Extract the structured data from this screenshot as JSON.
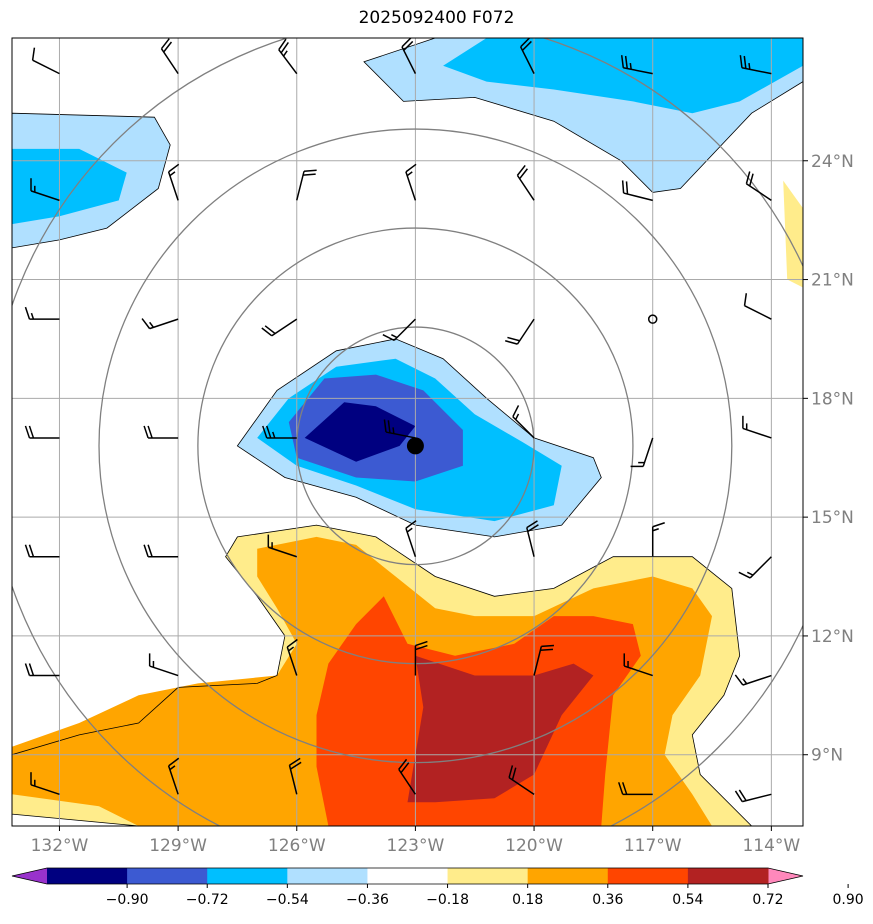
{
  "title": "2025092400 F072",
  "colors": {
    "c1": "#9932cc",
    "c2": "#000080",
    "c3": "#3c5ad2",
    "c4": "#00bfff",
    "c5": "#b0e0ff",
    "c6": "#ffffff",
    "c7": "#ffec8b",
    "c8": "#ffa500",
    "c9": "#ff4500",
    "c10": "#b22222",
    "c11": "#ff88bb",
    "grid": "#aaaaaa",
    "rings": "#808080",
    "tick_label": "#808080"
  },
  "chart_data": {
    "type": "contour-map",
    "xlim": [
      -133.2,
      -113.2
    ],
    "ylim": [
      7.2,
      27.1
    ],
    "x_ticks": [
      -132,
      -129,
      -126,
      -123,
      -120,
      -117,
      -114
    ],
    "x_tick_labels": [
      "132°W",
      "129°W",
      "126°W",
      "123°W",
      "120°W",
      "117°W",
      "114°W"
    ],
    "y_ticks": [
      9,
      12,
      15,
      18,
      21,
      24
    ],
    "y_tick_labels": [
      "9°N",
      "12°N",
      "15°N",
      "18°N",
      "21°N",
      "24°N"
    ],
    "grid": true,
    "storm_center": [
      -123.0,
      16.8
    ],
    "range_ring_radii_deg": [
      3,
      5.5,
      8,
      10.8
    ],
    "colorbar": {
      "levels": [
        -0.9,
        -0.72,
        -0.54,
        -0.36,
        -0.18,
        0.18,
        0.36,
        0.54,
        0.72,
        0.9
      ],
      "tick_labels": [
        "−0.90",
        "−0.72",
        "−0.54",
        "−0.36",
        "−0.18",
        "0.18",
        "0.36",
        "0.54",
        "0.72",
        "0.90"
      ],
      "extend": "both"
    },
    "shaded_regions": [
      {
        "level": 0.18,
        "outline": true,
        "points": [
          [
            -127.5,
            14.5
          ],
          [
            -125.5,
            14.8
          ],
          [
            -124,
            14.5
          ],
          [
            -122.5,
            13.5
          ],
          [
            -121,
            13
          ],
          [
            -119.5,
            13.2
          ],
          [
            -118,
            14
          ],
          [
            -116,
            14
          ],
          [
            -115,
            13.2
          ],
          [
            -114.8,
            11.5
          ],
          [
            -115.2,
            10.5
          ],
          [
            -116,
            9.5
          ],
          [
            -115.8,
            8.5
          ],
          [
            -114.5,
            7.2
          ],
          [
            -130,
            7.2
          ],
          [
            -133.2,
            7.5
          ],
          [
            -133.2,
            9
          ],
          [
            -131.5,
            9.5
          ],
          [
            -130,
            9.8
          ],
          [
            -129,
            10.7
          ],
          [
            -127,
            10.8
          ],
          [
            -126.5,
            11
          ],
          [
            -126.3,
            12
          ],
          [
            -127,
            13
          ],
          [
            -127.8,
            14
          ]
        ]
      },
      {
        "level": 0.18,
        "points": [
          [
            -113.2,
            22.8
          ],
          [
            -113.7,
            23.5
          ],
          [
            -113.6,
            21
          ],
          [
            -113.2,
            20.8
          ]
        ]
      },
      {
        "level": 0.36,
        "points": [
          [
            -127,
            14.2
          ],
          [
            -125.5,
            14.5
          ],
          [
            -124.5,
            14.3
          ],
          [
            -123.5,
            13.5
          ],
          [
            -122.5,
            12.7
          ],
          [
            -121.5,
            12.5
          ],
          [
            -120,
            12.5
          ],
          [
            -118.5,
            13.2
          ],
          [
            -117,
            13.5
          ],
          [
            -116,
            13.2
          ],
          [
            -115.5,
            12.5
          ],
          [
            -115.8,
            11
          ],
          [
            -116.5,
            10
          ],
          [
            -116.7,
            9
          ],
          [
            -116,
            8
          ],
          [
            -115.5,
            7.2
          ],
          [
            -130,
            7.2
          ],
          [
            -131,
            7.7
          ],
          [
            -133.2,
            8
          ],
          [
            -133.2,
            9.2
          ],
          [
            -131.5,
            9.8
          ],
          [
            -130,
            10.5
          ],
          [
            -128.5,
            10.8
          ],
          [
            -126.5,
            11
          ],
          [
            -126,
            11.8
          ],
          [
            -126.5,
            12.7
          ],
          [
            -127,
            13.5
          ]
        ]
      },
      {
        "level": 0.54,
        "points": [
          [
            -123.8,
            13
          ],
          [
            -123.2,
            11.8
          ],
          [
            -122,
            11.5
          ],
          [
            -120.5,
            11.8
          ],
          [
            -119.5,
            12.5
          ],
          [
            -118.5,
            12.5
          ],
          [
            -117.5,
            12.3
          ],
          [
            -117.3,
            11.5
          ],
          [
            -118,
            10.5
          ],
          [
            -118.2,
            8.5
          ],
          [
            -118.3,
            7.2
          ],
          [
            -125.2,
            7.2
          ],
          [
            -125.5,
            8.7
          ],
          [
            -125.5,
            10
          ],
          [
            -125.2,
            11.3
          ],
          [
            -124.5,
            12.3
          ]
        ]
      },
      {
        "level": 0.72,
        "points": [
          [
            -123,
            11.5
          ],
          [
            -121.5,
            11
          ],
          [
            -120,
            11
          ],
          [
            -119,
            11.3
          ],
          [
            -118.5,
            11
          ],
          [
            -119.3,
            10
          ],
          [
            -120,
            8.5
          ],
          [
            -121,
            7.9
          ],
          [
            -122.5,
            7.8
          ],
          [
            -123.2,
            7.8
          ],
          [
            -123,
            9
          ],
          [
            -122.8,
            10.2
          ]
        ]
      },
      {
        "level": -0.18,
        "outline": true,
        "points": [
          [
            -127.5,
            16.8
          ],
          [
            -126.5,
            18.2
          ],
          [
            -125,
            19.2
          ],
          [
            -123.5,
            19.5
          ],
          [
            -122.3,
            19
          ],
          [
            -121.2,
            18
          ],
          [
            -120,
            17
          ],
          [
            -118.5,
            16.5
          ],
          [
            -118.3,
            16
          ],
          [
            -119.3,
            14.8
          ],
          [
            -121,
            14.5
          ],
          [
            -123,
            14.8
          ],
          [
            -124.5,
            15.5
          ],
          [
            -126.3,
            16
          ]
        ]
      },
      {
        "level": -0.36,
        "points": [
          [
            -127,
            17
          ],
          [
            -126.2,
            18
          ],
          [
            -125,
            18.8
          ],
          [
            -123.5,
            19
          ],
          [
            -122.5,
            18.5
          ],
          [
            -121.5,
            17.6
          ],
          [
            -120.3,
            16.9
          ],
          [
            -119.3,
            16.3
          ],
          [
            -119.5,
            15.3
          ],
          [
            -121,
            14.9
          ],
          [
            -123,
            15.2
          ],
          [
            -124.5,
            15.8
          ],
          [
            -126,
            16.3
          ]
        ]
      },
      {
        "level": -0.54,
        "points": [
          [
            -126.2,
            17.4
          ],
          [
            -125.3,
            18.5
          ],
          [
            -124,
            18.6
          ],
          [
            -122.8,
            18.2
          ],
          [
            -121.8,
            17.2
          ],
          [
            -121.8,
            16.3
          ],
          [
            -123,
            15.9
          ],
          [
            -124.5,
            16
          ],
          [
            -126,
            16.5
          ]
        ]
      },
      {
        "level": -0.72,
        "points": [
          [
            -125.8,
            17
          ],
          [
            -124.8,
            17.9
          ],
          [
            -124,
            17.8
          ],
          [
            -123,
            17.3
          ],
          [
            -123.4,
            16.8
          ],
          [
            -124.5,
            16.4
          ]
        ]
      },
      {
        "level": -0.18,
        "outline": true,
        "points": [
          [
            -124.3,
            26.5
          ],
          [
            -122.5,
            27.1
          ],
          [
            -113.2,
            27.1
          ],
          [
            -113.2,
            26
          ],
          [
            -114.5,
            25.2
          ],
          [
            -116.3,
            23.3
          ],
          [
            -117,
            23.2
          ],
          [
            -117.8,
            24
          ],
          [
            -119.5,
            25
          ],
          [
            -121.5,
            25.6
          ],
          [
            -123.3,
            25.5
          ]
        ]
      },
      {
        "level": -0.36,
        "points": [
          [
            -122.3,
            26.4
          ],
          [
            -121.2,
            27.1
          ],
          [
            -113.2,
            27.1
          ],
          [
            -113.2,
            26.4
          ],
          [
            -114.8,
            25.5
          ],
          [
            -116,
            25.2
          ],
          [
            -117.5,
            25.5
          ],
          [
            -119.5,
            25.8
          ],
          [
            -121.2,
            26
          ]
        ]
      },
      {
        "level": -0.18,
        "outline": true,
        "points": [
          [
            -133.2,
            25.2
          ],
          [
            -129.6,
            25.1
          ],
          [
            -129.2,
            24.4
          ],
          [
            -129.5,
            23.3
          ],
          [
            -130.8,
            22.3
          ],
          [
            -132,
            22
          ],
          [
            -133.2,
            21.8
          ]
        ]
      },
      {
        "level": -0.36,
        "points": [
          [
            -133.2,
            24.3
          ],
          [
            -131.5,
            24.3
          ],
          [
            -130.3,
            23.7
          ],
          [
            -130.5,
            23
          ],
          [
            -132,
            22.6
          ],
          [
            -133.2,
            22.4
          ]
        ]
      }
    ],
    "wind_barbs": [
      {
        "lon": -132,
        "lat": 26.2,
        "u": -10,
        "v": 5
      },
      {
        "lon": -129,
        "lat": 26.2,
        "u": -10,
        "v": 15
      },
      {
        "lon": -126,
        "lat": 26.2,
        "u": -15,
        "v": 20
      },
      {
        "lon": -123,
        "lat": 26.2,
        "u": -10,
        "v": 20
      },
      {
        "lon": -120,
        "lat": 26.2,
        "u": -10,
        "v": 20
      },
      {
        "lon": -117,
        "lat": 26.2,
        "u": -25,
        "v": 5
      },
      {
        "lon": -114,
        "lat": 26.2,
        "u": -25,
        "v": 5
      },
      {
        "lon": -132,
        "lat": 23,
        "u": -15,
        "v": 5
      },
      {
        "lon": -129,
        "lat": 23,
        "u": -5,
        "v": 15
      },
      {
        "lon": -126,
        "lat": 23,
        "u": 5,
        "v": 20
      },
      {
        "lon": -123,
        "lat": 23,
        "u": -5,
        "v": 15
      },
      {
        "lon": -120,
        "lat": 23,
        "u": -10,
        "v": 15
      },
      {
        "lon": -117,
        "lat": 23,
        "u": -20,
        "v": 5
      },
      {
        "lon": -114,
        "lat": 23,
        "u": -15,
        "v": 10
      },
      {
        "lon": -132,
        "lat": 20,
        "u": -15,
        "v": 0
      },
      {
        "lon": -129,
        "lat": 20,
        "u": -15,
        "v": -5
      },
      {
        "lon": -126,
        "lat": 20,
        "u": -15,
        "v": -10
      },
      {
        "lon": -123,
        "lat": 20,
        "u": -10,
        "v": -10
      },
      {
        "lon": -120,
        "lat": 20,
        "u": -10,
        "v": -15
      },
      {
        "lon": -117,
        "lat": 20,
        "u": 0,
        "v": 0
      },
      {
        "lon": -114,
        "lat": 20,
        "u": -10,
        "v": 5
      },
      {
        "lon": -132,
        "lat": 17,
        "u": -20,
        "v": 0
      },
      {
        "lon": -129,
        "lat": 17,
        "u": -20,
        "v": 0
      },
      {
        "lon": -126,
        "lat": 17,
        "u": -25,
        "v": 0
      },
      {
        "lon": -123,
        "lat": 17,
        "u": -25,
        "v": 5
      },
      {
        "lon": -120,
        "lat": 17,
        "u": -10,
        "v": 10
      },
      {
        "lon": -117,
        "lat": 17,
        "u": -5,
        "v": -15
      },
      {
        "lon": -114,
        "lat": 17,
        "u": -15,
        "v": 5
      },
      {
        "lon": -132,
        "lat": 14,
        "u": -20,
        "v": 0
      },
      {
        "lon": -129,
        "lat": 14,
        "u": -20,
        "v": 0
      },
      {
        "lon": -126,
        "lat": 14,
        "u": -15,
        "v": 5
      },
      {
        "lon": -123,
        "lat": 14,
        "u": -5,
        "v": 15
      },
      {
        "lon": -120,
        "lat": 14,
        "u": -5,
        "v": 20
      },
      {
        "lon": -117,
        "lat": 14,
        "u": 0,
        "v": 15
      },
      {
        "lon": -114,
        "lat": 14,
        "u": -10,
        "v": -10
      },
      {
        "lon": -132,
        "lat": 11,
        "u": -20,
        "v": 0
      },
      {
        "lon": -129,
        "lat": 11,
        "u": -15,
        "v": 5
      },
      {
        "lon": -126,
        "lat": 11,
        "u": -5,
        "v": 15
      },
      {
        "lon": -123,
        "lat": 11,
        "u": 0,
        "v": 20
      },
      {
        "lon": -120,
        "lat": 11,
        "u": 5,
        "v": 20
      },
      {
        "lon": -117,
        "lat": 11,
        "u": -15,
        "v": 5
      },
      {
        "lon": -114,
        "lat": 11,
        "u": -15,
        "v": -5
      },
      {
        "lon": -132,
        "lat": 8,
        "u": -15,
        "v": 5
      },
      {
        "lon": -129,
        "lat": 8,
        "u": -5,
        "v": 15
      },
      {
        "lon": -126,
        "lat": 8,
        "u": -5,
        "v": 20
      },
      {
        "lon": -123,
        "lat": 8,
        "u": -10,
        "v": 15
      },
      {
        "lon": -120,
        "lat": 8,
        "u": -15,
        "v": 10
      },
      {
        "lon": -117,
        "lat": 8,
        "u": -20,
        "v": 0
      },
      {
        "lon": -114,
        "lat": 8,
        "u": -20,
        "v": -5
      }
    ]
  }
}
